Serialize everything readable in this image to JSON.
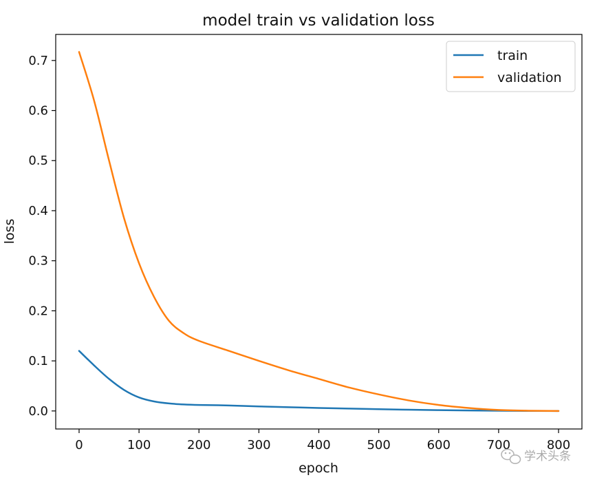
{
  "chart_data": {
    "type": "line",
    "title": "model train vs validation loss",
    "xlabel": "epoch",
    "ylabel": "loss",
    "xlim": [
      -39,
      839
    ],
    "ylim": [
      -0.036,
      0.752
    ],
    "xticks": [
      0,
      100,
      200,
      300,
      400,
      500,
      600,
      700,
      800
    ],
    "xtick_labels": [
      "0",
      "100",
      "200",
      "300",
      "400",
      "500",
      "600",
      "700",
      "800"
    ],
    "yticks": [
      0.0,
      0.1,
      0.2,
      0.3,
      0.4,
      0.5,
      0.6,
      0.7
    ],
    "ytick_labels": [
      "0.0",
      "0.1",
      "0.2",
      "0.3",
      "0.4",
      "0.5",
      "0.6",
      "0.7"
    ],
    "grid": false,
    "legend_position": "top-right",
    "x": [
      0,
      25,
      50,
      75,
      100,
      125,
      150,
      175,
      200,
      250,
      300,
      350,
      400,
      450,
      500,
      550,
      600,
      650,
      700,
      750,
      800
    ],
    "series": [
      {
        "name": "train",
        "color": "#1f77b4",
        "values": [
          0.12,
          0.091,
          0.064,
          0.042,
          0.027,
          0.019,
          0.015,
          0.013,
          0.012,
          0.011,
          0.009,
          0.0075,
          0.006,
          0.0048,
          0.0035,
          0.0025,
          0.0016,
          0.0009,
          0.0004,
          0.0001,
          0.0
        ]
      },
      {
        "name": "validation",
        "color": "#ff7f0e",
        "values": [
          0.717,
          0.62,
          0.5,
          0.385,
          0.295,
          0.228,
          0.18,
          0.155,
          0.14,
          0.12,
          0.1,
          0.081,
          0.064,
          0.047,
          0.033,
          0.021,
          0.012,
          0.006,
          0.002,
          0.0005,
          0.0
        ]
      }
    ]
  },
  "watermark": {
    "text": "学术头条",
    "icon": "wechat-icon"
  }
}
